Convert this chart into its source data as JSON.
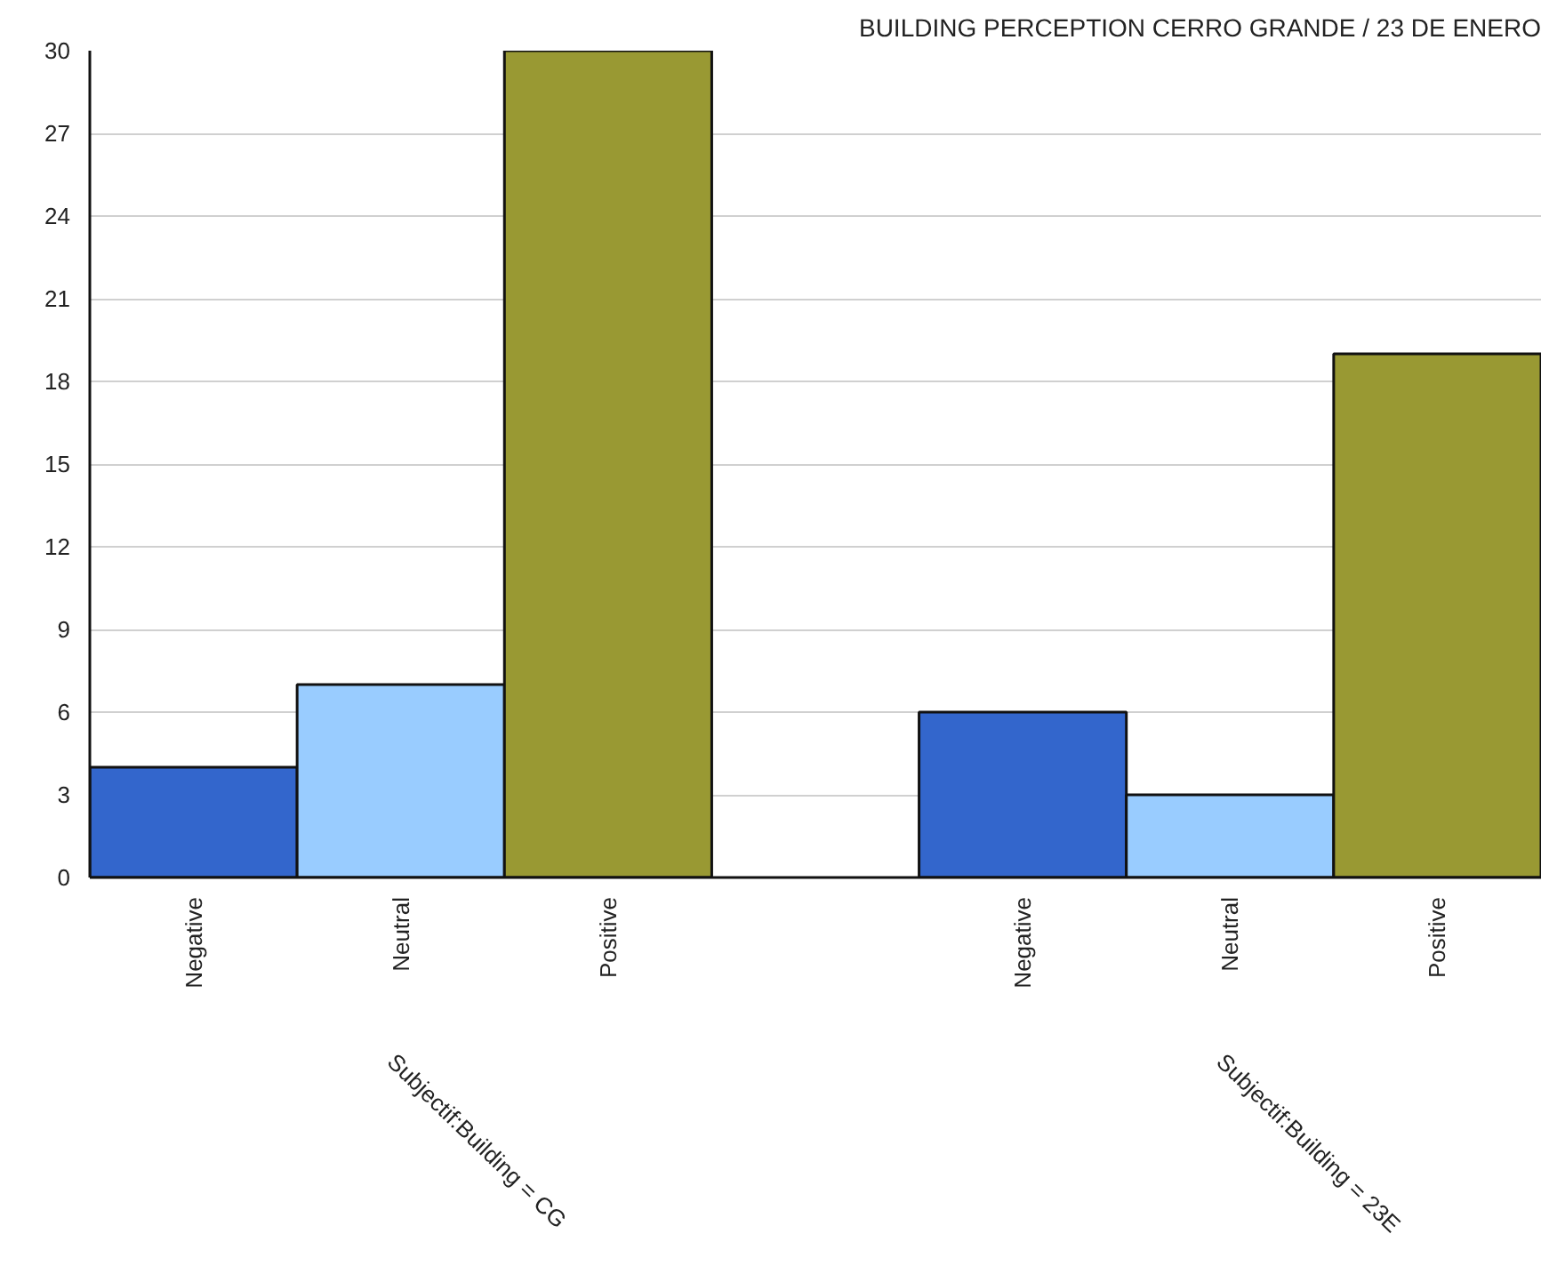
{
  "chart_data": {
    "type": "bar",
    "title": "BUILDING PERCEPTION CERRO GRANDE / 23 DE ENERO",
    "categories": [
      "Negative",
      "Neutral",
      "Positive",
      null,
      "Negative",
      "Neutral",
      "Positive"
    ],
    "values": [
      4,
      7,
      30,
      null,
      6,
      3,
      19
    ],
    "colors": [
      "#3366cc",
      "#99ccff",
      "#999933",
      null,
      "#3366cc",
      "#99ccff",
      "#999933"
    ],
    "ylim": [
      0,
      30
    ],
    "yticks": [
      0,
      3,
      6,
      9,
      12,
      15,
      18,
      21,
      24,
      27,
      30
    ],
    "grid": "y",
    "annotations": [
      "Subjectif:Building = CG",
      "Subjectif:Building = 23E"
    ]
  }
}
